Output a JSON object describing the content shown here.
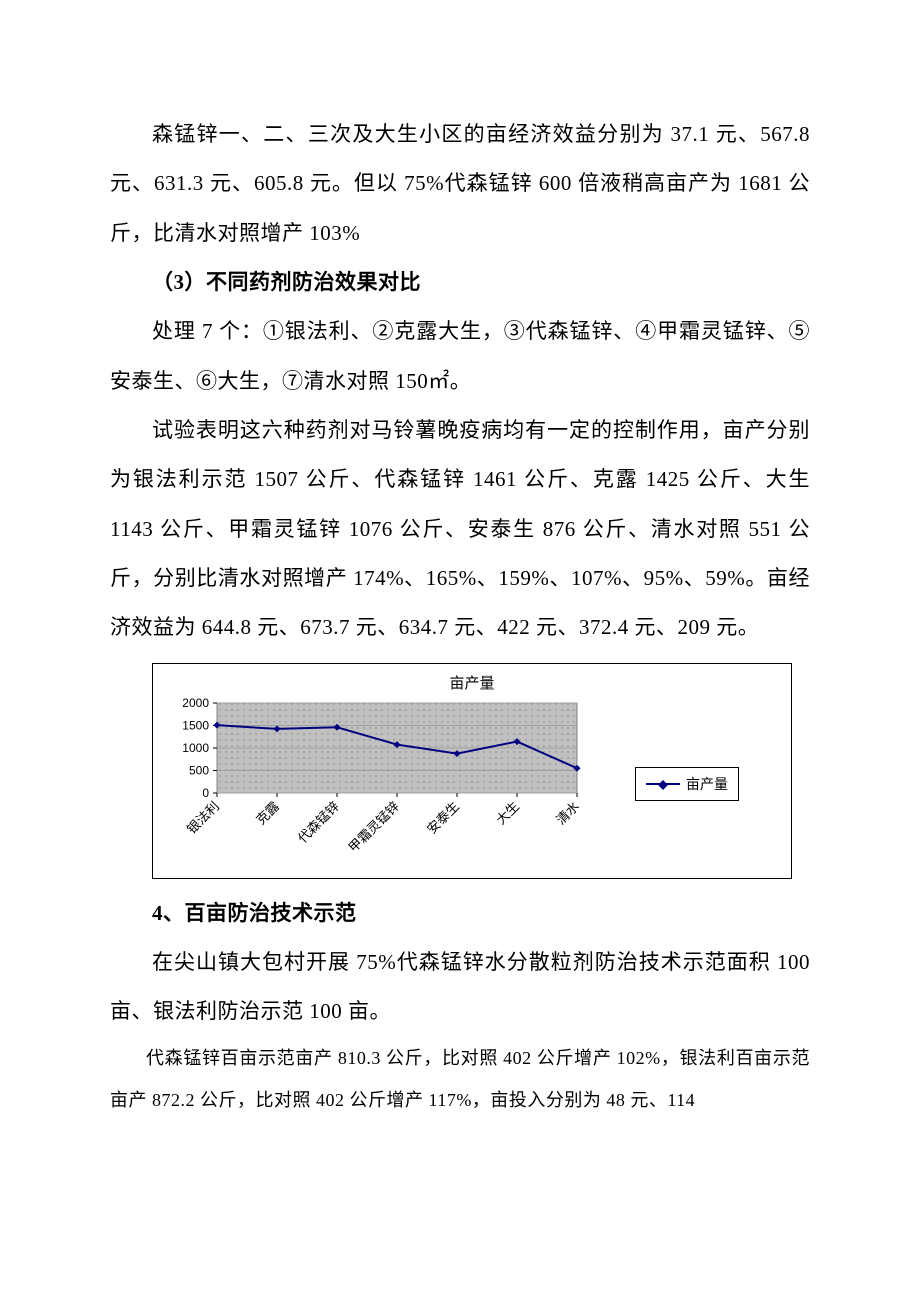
{
  "paragraphs": {
    "p1": "森锰锌一、二、三次及大生小区的亩经济效益分别为 37.1 元、567.8 元、631.3 元、605.8 元。但以 75%代森锰锌 600 倍液稍高亩产为 1681 公斤，比清水对照增产 103%",
    "p2": "（3）不同药剂防治效果对比",
    "p3": "处理 7 个：①银法利、②克露大生，③代森锰锌、④甲霜灵锰锌、⑤安泰生、⑥大生，⑦清水对照 150㎡。",
    "p4": "试验表明这六种药剂对马铃薯晚疫病均有一定的控制作用，亩产分别为银法利示范 1507 公斤、代森锰锌 1461 公斤、克露 1425 公斤、大生 1143 公斤、甲霜灵锰锌 1076 公斤、安泰生 876 公斤、清水对照 551 公斤，分别比清水对照增产 174%、165%、159%、107%、95%、59%。亩经济效益为 644.8 元、673.7 元、634.7 元、422 元、372.4 元、209 元。",
    "p5": "4、百亩防治技术示范",
    "p6": "在尖山镇大包村开展 75%代森锰锌水分散粒剂防治技术示范面积 100 亩、银法利防治示范 100 亩。",
    "p7": "代森锰锌百亩示范亩产 810.3 公斤，比对照 402 公斤增产 102%，银法利百亩示范亩产 872.2 公斤，比对照 402 公斤增产 117%，亩投入分别为 48 元、114"
  },
  "chart": {
    "type": "line",
    "title": "亩产量",
    "legend_label": "亩产量",
    "categories": [
      "银法利",
      "克露",
      "代森锰锌",
      "甲霜灵锰锌",
      "安泰生",
      "大生",
      "清水"
    ],
    "values": [
      1507,
      1425,
      1461,
      1076,
      876,
      1143,
      551
    ],
    "ylim": [
      0,
      2000
    ],
    "yticks": [
      0,
      500,
      1000,
      1500,
      2000
    ],
    "line_color": "#000080",
    "marker_color": "#000080",
    "marker": "diamond",
    "marker_size": 7,
    "line_width": 2,
    "plot_bg": "#c0c0c0",
    "grid_color": "#a0a0a0",
    "axis_color": "#808080",
    "axis_font": "Arial",
    "axis_fontsize": 12,
    "label_fontsize": 13,
    "label_angle": -45
  }
}
